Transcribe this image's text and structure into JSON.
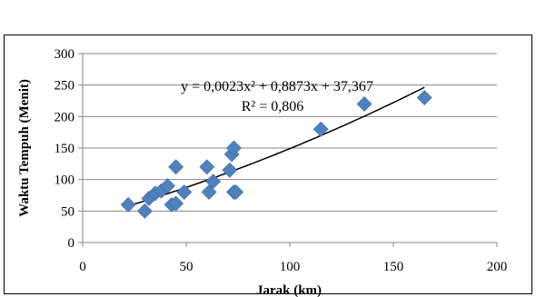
{
  "chart_data": {
    "type": "scatter",
    "xlabel": "Jarak (km)",
    "ylabel": "Waktu Tempuh (Menit)",
    "xlim": [
      0,
      200
    ],
    "ylim": [
      0,
      300
    ],
    "x_ticks": [
      "0",
      "50",
      "100",
      "150",
      "200"
    ],
    "y_ticks": [
      "0",
      "50",
      "100",
      "150",
      "200",
      "250",
      "300"
    ],
    "grid": "horizontal",
    "legend": "none",
    "points": [
      {
        "x": 22,
        "y": 60
      },
      {
        "x": 30,
        "y": 50
      },
      {
        "x": 32,
        "y": 70
      },
      {
        "x": 35,
        "y": 78
      },
      {
        "x": 38,
        "y": 82
      },
      {
        "x": 41,
        "y": 90
      },
      {
        "x": 43,
        "y": 60
      },
      {
        "x": 45,
        "y": 120
      },
      {
        "x": 45,
        "y": 62
      },
      {
        "x": 49,
        "y": 80
      },
      {
        "x": 60,
        "y": 120
      },
      {
        "x": 61,
        "y": 80
      },
      {
        "x": 63,
        "y": 97
      },
      {
        "x": 71,
        "y": 115
      },
      {
        "x": 72,
        "y": 140
      },
      {
        "x": 73,
        "y": 150
      },
      {
        "x": 73,
        "y": 80
      },
      {
        "x": 74,
        "y": 80
      },
      {
        "x": 115,
        "y": 180
      },
      {
        "x": 136,
        "y": 220
      },
      {
        "x": 165,
        "y": 230
      }
    ],
    "trendline": {
      "type": "polynomial",
      "coefficients": {
        "a": 0.0023,
        "b": 0.8873,
        "c": 37.367
      },
      "x_range": [
        22,
        165
      ],
      "equation_label": "y = 0,0023x² + 0,8873x + 37,367",
      "r2_label": "R² = 0,806"
    },
    "colors": {
      "marker": "#4f81bd",
      "marker_edge": "#3a6ba8",
      "trendline": "#000000",
      "grid": "#868686",
      "axis": "#868686"
    }
  }
}
